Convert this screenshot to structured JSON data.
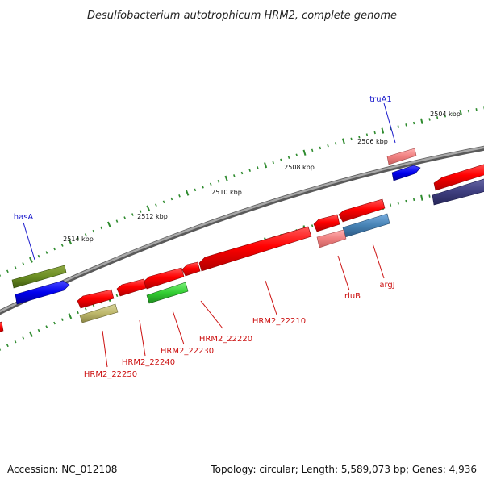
{
  "title": "Desulfobacterium autotrophicum HRM2, complete genome",
  "footer": {
    "accession": "Accession: NC_012108",
    "summary": "Topology: circular; Length: 5,589,073 bp; Genes: 4,936"
  },
  "colors": {
    "backbone": "#8a8a8a",
    "tick": "#2e8b2e",
    "label_top": "#1a1acc",
    "label_bottom": "#cc1111"
  },
  "ruler": [
    "2504 kbp",
    "2506 kbp",
    "2508 kbp",
    "2510 kbp",
    "2512 kbp",
    "2514 kbp"
  ],
  "labels_top": [
    {
      "id": "truA1",
      "text": "truA1"
    },
    {
      "id": "hasA",
      "text": "hasA"
    }
  ],
  "labels_bottom": [
    {
      "id": "argJ",
      "text": "argJ"
    },
    {
      "id": "rluB",
      "text": "rluB"
    },
    {
      "id": "HRM2_22210",
      "text": "HRM2_22210"
    },
    {
      "id": "HRM2_22220",
      "text": "HRM2_22220"
    },
    {
      "id": "HRM2_22230",
      "text": "HRM2_22230"
    },
    {
      "id": "HRM2_22240",
      "text": "HRM2_22240"
    },
    {
      "id": "HRM2_22250",
      "text": "HRM2_22250"
    }
  ]
}
